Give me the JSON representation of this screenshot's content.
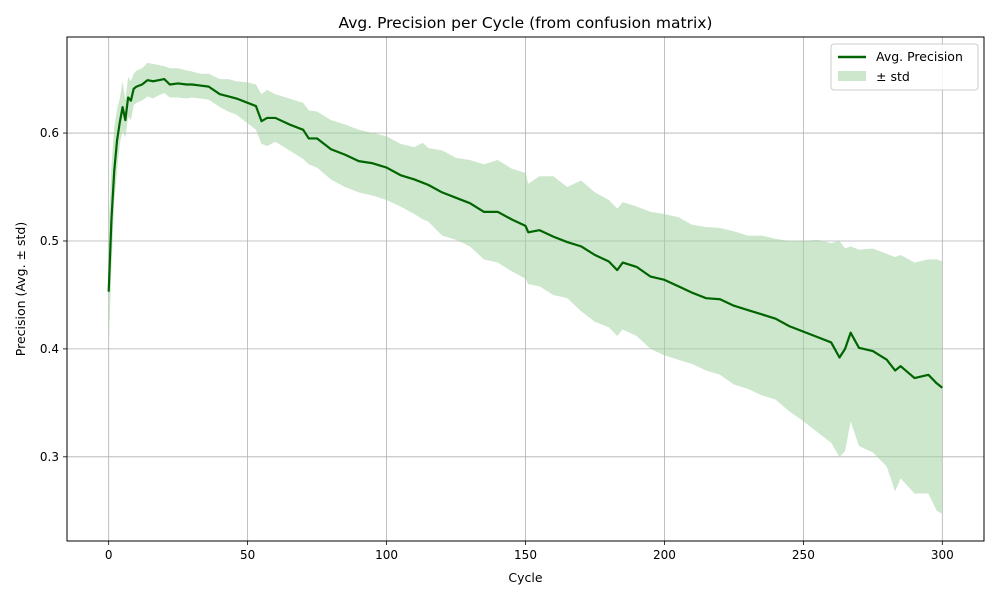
{
  "chart_data": {
    "type": "line",
    "title": "Avg. Precision per Cycle (from confusion matrix)",
    "xlabel": "Cycle",
    "ylabel": "Precision (Avg. ± std)",
    "xlim": [
      -15,
      315
    ],
    "ylim": [
      0.222,
      0.689
    ],
    "x_ticks": [
      0,
      50,
      100,
      150,
      200,
      250,
      300
    ],
    "y_ticks": [
      0.3,
      0.4,
      0.5,
      0.6
    ],
    "grid": true,
    "legend_position": "top-right",
    "line_color": "#006400",
    "band_color": "#a3d4a3",
    "series": [
      {
        "name": "Avg. Precision",
        "x": [
          0,
          1,
          2,
          3,
          4,
          5,
          6,
          7,
          8,
          9,
          10,
          12,
          14,
          16,
          18,
          20,
          22,
          25,
          28,
          30,
          33,
          36,
          40,
          43,
          46,
          50,
          53,
          55,
          57,
          60,
          65,
          70,
          72,
          75,
          80,
          85,
          90,
          95,
          100,
          105,
          110,
          113,
          115,
          120,
          125,
          130,
          135,
          140,
          145,
          150,
          151,
          155,
          160,
          165,
          170,
          175,
          180,
          183,
          185,
          190,
          195,
          200,
          205,
          210,
          215,
          220,
          225,
          230,
          235,
          240,
          245,
          250,
          255,
          260,
          263,
          265,
          267,
          270,
          275,
          280,
          283,
          285,
          290,
          295,
          298,
          300
        ],
        "values": [
          0.453,
          0.52,
          0.565,
          0.593,
          0.61,
          0.624,
          0.612,
          0.633,
          0.63,
          0.641,
          0.643,
          0.645,
          0.649,
          0.648,
          0.649,
          0.65,
          0.645,
          0.646,
          0.645,
          0.645,
          0.644,
          0.643,
          0.636,
          0.634,
          0.632,
          0.628,
          0.625,
          0.611,
          0.614,
          0.614,
          0.608,
          0.603,
          0.595,
          0.595,
          0.585,
          0.58,
          0.574,
          0.572,
          0.568,
          0.561,
          0.557,
          0.554,
          0.552,
          0.545,
          0.54,
          0.535,
          0.527,
          0.527,
          0.52,
          0.514,
          0.508,
          0.51,
          0.504,
          0.499,
          0.495,
          0.487,
          0.481,
          0.473,
          0.48,
          0.476,
          0.467,
          0.464,
          0.458,
          0.452,
          0.447,
          0.446,
          0.44,
          0.436,
          0.432,
          0.428,
          0.421,
          0.416,
          0.411,
          0.406,
          0.392,
          0.4,
          0.415,
          0.401,
          0.398,
          0.39,
          0.38,
          0.384,
          0.373,
          0.376,
          0.368,
          0.364
        ]
      },
      {
        "name": "± std",
        "x": [
          0,
          1,
          2,
          3,
          4,
          5,
          6,
          7,
          8,
          9,
          10,
          12,
          14,
          16,
          18,
          20,
          22,
          25,
          28,
          30,
          33,
          36,
          40,
          43,
          46,
          50,
          53,
          55,
          57,
          60,
          65,
          70,
          72,
          75,
          80,
          85,
          90,
          95,
          100,
          105,
          110,
          113,
          115,
          120,
          125,
          130,
          135,
          140,
          145,
          150,
          151,
          155,
          160,
          165,
          170,
          175,
          180,
          183,
          185,
          190,
          195,
          200,
          205,
          210,
          215,
          220,
          225,
          230,
          235,
          240,
          245,
          250,
          255,
          260,
          263,
          265,
          267,
          270,
          275,
          280,
          283,
          285,
          290,
          295,
          298,
          300
        ],
        "upper": [
          0.51,
          0.57,
          0.605,
          0.622,
          0.632,
          0.648,
          0.63,
          0.652,
          0.648,
          0.655,
          0.658,
          0.66,
          0.665,
          0.664,
          0.663,
          0.662,
          0.66,
          0.66,
          0.658,
          0.657,
          0.655,
          0.655,
          0.65,
          0.65,
          0.648,
          0.647,
          0.645,
          0.636,
          0.64,
          0.636,
          0.632,
          0.628,
          0.621,
          0.62,
          0.612,
          0.608,
          0.603,
          0.6,
          0.597,
          0.59,
          0.587,
          0.591,
          0.586,
          0.584,
          0.577,
          0.575,
          0.571,
          0.575,
          0.567,
          0.563,
          0.553,
          0.56,
          0.56,
          0.55,
          0.556,
          0.545,
          0.538,
          0.53,
          0.536,
          0.532,
          0.527,
          0.525,
          0.522,
          0.515,
          0.513,
          0.512,
          0.509,
          0.505,
          0.505,
          0.502,
          0.5,
          0.5,
          0.501,
          0.498,
          0.5,
          0.493,
          0.495,
          0.492,
          0.493,
          0.488,
          0.485,
          0.487,
          0.48,
          0.483,
          0.483,
          0.481
        ],
        "lower": [
          0.4,
          0.475,
          0.535,
          0.565,
          0.59,
          0.602,
          0.596,
          0.615,
          0.612,
          0.626,
          0.628,
          0.63,
          0.634,
          0.632,
          0.635,
          0.637,
          0.633,
          0.633,
          0.632,
          0.633,
          0.632,
          0.631,
          0.624,
          0.62,
          0.617,
          0.609,
          0.603,
          0.59,
          0.588,
          0.592,
          0.584,
          0.576,
          0.571,
          0.568,
          0.557,
          0.55,
          0.545,
          0.542,
          0.538,
          0.532,
          0.525,
          0.52,
          0.518,
          0.505,
          0.501,
          0.495,
          0.483,
          0.48,
          0.472,
          0.465,
          0.46,
          0.458,
          0.45,
          0.447,
          0.435,
          0.425,
          0.42,
          0.412,
          0.418,
          0.412,
          0.4,
          0.394,
          0.39,
          0.386,
          0.38,
          0.376,
          0.367,
          0.363,
          0.357,
          0.353,
          0.342,
          0.333,
          0.323,
          0.313,
          0.3,
          0.305,
          0.333,
          0.31,
          0.304,
          0.291,
          0.268,
          0.28,
          0.266,
          0.266,
          0.25,
          0.247
        ]
      }
    ]
  }
}
